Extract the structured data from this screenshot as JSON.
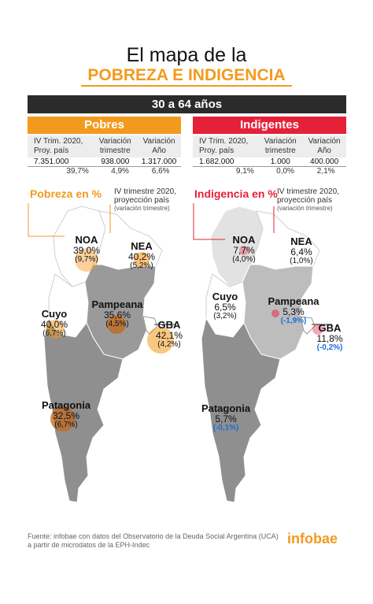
{
  "title": {
    "line1": "El mapa de la",
    "line2": "POBREZA E INDIGENCIA"
  },
  "age_group": "30 a 64 años",
  "pobres": {
    "header": "Pobres",
    "col1": "IV Trim. 2020, Proy. país",
    "col2": "Variación trimestre",
    "col3": "Variación Año",
    "values": [
      "7.351.000",
      "938.000",
      "1.317.000"
    ],
    "pcts": [
      "39,7%",
      "4,9%",
      "6,6%"
    ],
    "map_title": "Pobreza en %",
    "map_sub1": "IV trimestre 2020,",
    "map_sub2": "proyección país",
    "map_sub3": "(variación trimestre)",
    "regions": {
      "noa": {
        "name": "NOA",
        "value": "39,0%",
        "var": "(9,7%)"
      },
      "nea": {
        "name": "NEA",
        "value": "40,2%",
        "var": "(5,2%)"
      },
      "cuyo": {
        "name": "Cuyo",
        "value": "40,0%",
        "var": "(6,7%)"
      },
      "pampeana": {
        "name": "Pampeana",
        "value": "35,6%",
        "var": "(4,5%)"
      },
      "gba": {
        "name": "GBA",
        "value": "42,1%",
        "var": "(4,2%)"
      },
      "patagonia": {
        "name": "Patagonia",
        "value": "32,5%",
        "var": "(6,7%)"
      }
    }
  },
  "indigentes": {
    "header": "Indigentes",
    "col1": "IV Trim. 2020, Proy. país",
    "col2": "Variación trimestre",
    "col3": "Variación Año",
    "values": [
      "1.682.000",
      "1.000",
      "400.000"
    ],
    "pcts": [
      "9,1%",
      "0,0%",
      "2,1%"
    ],
    "map_title": "Indigencia en %",
    "map_sub1": "IV trimestre 2020,",
    "map_sub2": "proyección país",
    "map_sub3": "(variación trimestre)",
    "regions": {
      "noa": {
        "name": "NOA",
        "value": "7,7%",
        "var": "(4,0%)"
      },
      "nea": {
        "name": "NEA",
        "value": "6,4%",
        "var": "(1,0%)"
      },
      "cuyo": {
        "name": "Cuyo",
        "value": "6,5%",
        "var": "(3,2%)"
      },
      "pampeana": {
        "name": "Pampeana",
        "value": "5,3%",
        "var": "(-1,9%)"
      },
      "gba": {
        "name": "GBA",
        "value": "11,8%",
        "var": "(-0,2%)"
      },
      "patagonia": {
        "name": "Patagonia",
        "value": "5,7%",
        "var": "(-0,1%)"
      }
    }
  },
  "footer": {
    "line1": "Fuente: infobae con datos del  Observatorio de la Deuda Social Argentina (UCA)",
    "line2": "a partir de microdatos de la EPH-Indec"
  },
  "logo": "infobae",
  "colors": {
    "orange": "#f39a1e",
    "red": "#e5213a",
    "dark": "#2b2b2b",
    "blue": "#1a6fd6",
    "map_gray": "#9a9a9a",
    "map_light": "#e2e2e2"
  }
}
